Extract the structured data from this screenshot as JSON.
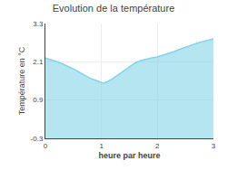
{
  "chart_data": {
    "type": "area",
    "title": "Evolution de la température",
    "xlabel": "heure par heure",
    "ylabel": "Température en °C",
    "x": [
      0,
      0.1,
      0.2,
      0.3,
      0.4,
      0.5,
      0.6,
      0.7,
      0.8,
      0.9,
      1.0,
      1.05,
      1.1,
      1.2,
      1.3,
      1.4,
      1.5,
      1.6,
      1.7,
      1.8,
      1.9,
      2.0,
      2.1,
      2.2,
      2.3,
      2.4,
      2.5,
      2.6,
      2.7,
      2.8,
      2.9,
      3.0
    ],
    "values": [
      2.22,
      2.17,
      2.11,
      2.04,
      1.97,
      1.88,
      1.78,
      1.68,
      1.58,
      1.52,
      1.45,
      1.44,
      1.47,
      1.57,
      1.69,
      1.82,
      1.95,
      2.06,
      2.14,
      2.19,
      2.22,
      2.25,
      2.3,
      2.36,
      2.42,
      2.49,
      2.56,
      2.62,
      2.68,
      2.73,
      2.78,
      2.82
    ],
    "color": "#82d4e8",
    "xlim": [
      0,
      3
    ],
    "ylim": [
      -0.3,
      3.3
    ],
    "xticks": [
      0,
      1,
      2,
      3
    ],
    "yticks": [
      -0.3,
      0.9,
      2.1,
      3.3
    ],
    "grid": true
  }
}
